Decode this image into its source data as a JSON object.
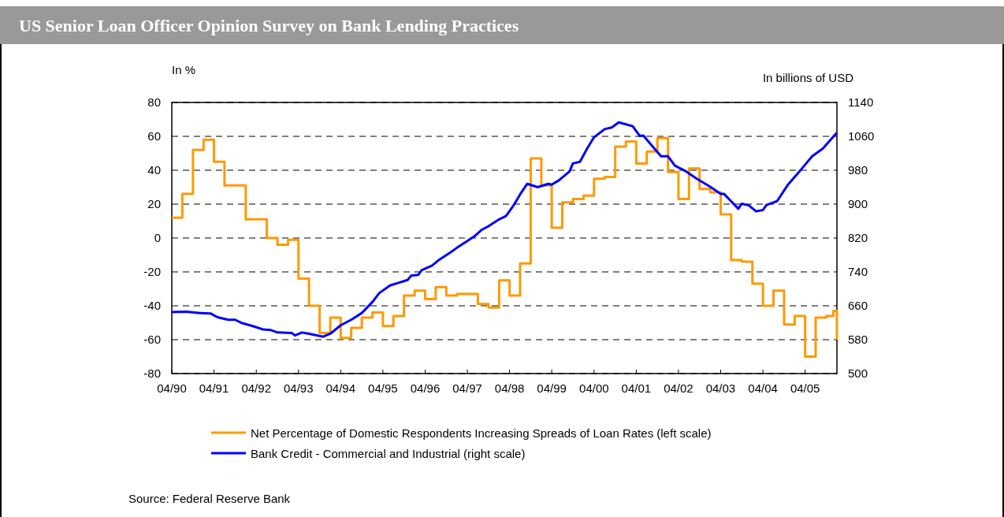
{
  "chart_data": {
    "type": "line",
    "title": "US Senior Loan Officer Opinion Survey on Bank Lending Practices",
    "ylabel": "In %",
    "y2label": "In billions of USD",
    "annotations": [
      "Source: Federal Reserve Bank"
    ],
    "xlim": [
      "1990-04",
      "2006-01"
    ],
    "xticks": [
      {
        "value": "1990-04",
        "label": "04/90"
      },
      {
        "value": "1991-04",
        "label": "04/91"
      },
      {
        "value": "1992-04",
        "label": "04/92"
      },
      {
        "value": "1993-04",
        "label": "04/93"
      },
      {
        "value": "1994-04",
        "label": "04/94"
      },
      {
        "value": "1995-04",
        "label": "04/95"
      },
      {
        "value": "1996-04",
        "label": "04/96"
      },
      {
        "value": "1997-04",
        "label": "04/97"
      },
      {
        "value": "1998-04",
        "label": "04/98"
      },
      {
        "value": "1999-04",
        "label": "04/99"
      },
      {
        "value": "2000-04",
        "label": "04/00"
      },
      {
        "value": "2001-04",
        "label": "04/01"
      },
      {
        "value": "2002-04",
        "label": "04/02"
      },
      {
        "value": "2003-04",
        "label": "04/03"
      },
      {
        "value": "2004-04",
        "label": "04/04"
      },
      {
        "value": "2005-04",
        "label": "04/05"
      }
    ],
    "ylim": [
      -80,
      80
    ],
    "yticks": [
      -80,
      -60,
      -40,
      -20,
      0,
      20,
      40,
      60,
      80
    ],
    "y2lim": [
      500,
      1140
    ],
    "y2ticks": [
      500,
      580,
      660,
      740,
      820,
      900,
      980,
      1060,
      1140
    ],
    "grid": "y",
    "legend": "bottom",
    "series": [
      {
        "name": "Net Percentage of Domestic Respondents Increasing Spreads of Loan Rates (left scale)",
        "type": "step",
        "color": "#ff9900",
        "x": [
          "1990-04",
          "1990-07",
          "1990-10",
          "1991-01",
          "1991-04",
          "1991-07",
          "1991-10",
          "1992-01",
          "1992-04",
          "1992-07",
          "1992-10",
          "1993-01",
          "1993-04",
          "1993-07",
          "1993-10",
          "1994-01",
          "1994-04",
          "1994-07",
          "1994-10",
          "1995-01",
          "1995-04",
          "1995-07",
          "1995-10",
          "1996-01",
          "1996-04",
          "1996-07",
          "1996-10",
          "1997-01",
          "1997-04",
          "1997-07",
          "1997-10",
          "1998-01",
          "1998-04",
          "1998-07",
          "1998-10",
          "1999-01",
          "1999-04",
          "1999-07",
          "1999-10",
          "2000-01",
          "2000-04",
          "2000-07",
          "2000-10",
          "2001-01",
          "2001-04",
          "2001-07",
          "2001-10",
          "2002-01",
          "2002-04",
          "2002-07",
          "2002-10",
          "2003-01",
          "2003-04",
          "2003-07",
          "2003-10",
          "2004-01",
          "2004-04",
          "2004-07",
          "2004-10",
          "2005-01",
          "2005-04",
          "2005-07",
          "2005-10",
          "2005-12",
          "2006-01"
        ],
        "values": [
          12,
          26,
          52,
          58,
          45,
          31,
          31,
          11,
          11,
          0,
          -4,
          -1,
          -24,
          -40,
          -56,
          -47,
          -59,
          -53,
          -47,
          -44,
          -52,
          -46,
          -34,
          -31,
          -36,
          -29,
          -34,
          -33,
          -33,
          -39,
          -41,
          -25,
          -34,
          -15,
          47,
          31,
          6,
          21,
          23,
          25,
          35,
          36,
          54,
          57,
          44,
          51,
          59,
          39,
          23,
          41,
          29,
          27,
          14,
          -13,
          -14,
          -27,
          -40,
          -31,
          -51,
          -46,
          -70,
          -47,
          -46,
          -43,
          -60
        ]
      },
      {
        "name": "Bank Credit - Commercial and Industrial (right scale)",
        "type": "line",
        "color": "#0000ff",
        "axis": "y2",
        "x": [
          "1990-04",
          "1990-08",
          "1990-12",
          "1991-03",
          "1991-05",
          "1991-08",
          "1991-10",
          "1991-12",
          "1992-03",
          "1992-06",
          "1992-08",
          "1992-10",
          "1993-02",
          "1993-03",
          "1993-05",
          "1993-07",
          "1993-11",
          "1994-01",
          "1994-04",
          "1994-07",
          "1994-10",
          "1995-01",
          "1995-03",
          "1995-06",
          "1995-11",
          "1995-12",
          "1996-02",
          "1996-03",
          "1996-06",
          "1996-08",
          "1996-11",
          "1997-01",
          "1997-04",
          "1997-06",
          "1997-08",
          "1997-10",
          "1998-01",
          "1998-03",
          "1998-05",
          "1998-06",
          "1998-07",
          "1998-09",
          "1998-12",
          "1999-03",
          "1999-04",
          "1999-06",
          "1999-09",
          "1999-10",
          "1999-12",
          "2000-02",
          "2000-04",
          "2000-07",
          "2000-09",
          "2000-11",
          "2001-03",
          "2001-05",
          "2001-06",
          "2001-11",
          "2002-01",
          "2002-03",
          "2002-06",
          "2002-09",
          "2003-01",
          "2003-04",
          "2003-05",
          "2003-09",
          "2003-10",
          "2003-12",
          "2004-02",
          "2004-04",
          "2004-05",
          "2004-08",
          "2004-11",
          "2005-03",
          "2005-06",
          "2005-09",
          "2006-01"
        ],
        "values": [
          645,
          646,
          643,
          642,
          633,
          627,
          627,
          619,
          612,
          604,
          603,
          597,
          596,
          590,
          597,
          594,
          587,
          594,
          614,
          627,
          643,
          669,
          690,
          708,
          721,
          731,
          733,
          744,
          755,
          769,
          785,
          797,
          813,
          824,
          839,
          848,
          864,
          872,
          895,
          909,
          923,
          948,
          940,
          948,
          946,
          956,
          977,
          996,
          1000,
          1031,
          1058,
          1077,
          1081,
          1093,
          1084,
          1061,
          1062,
          1013,
          1013,
          991,
          978,
          961,
          941,
          924,
          924,
          889,
          901,
          897,
          883,
          886,
          898,
          907,
          945,
          983,
          1013,
          1031,
          1069
        ]
      }
    ]
  }
}
